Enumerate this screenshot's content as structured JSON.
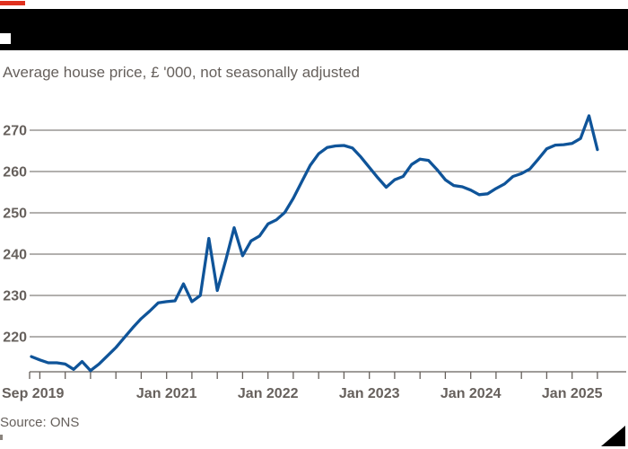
{
  "subtitle": "Average house price, £ '000, not seasonally adjusted",
  "source": "Source: ONS",
  "colors": {
    "background": "#ffffff",
    "line": "#0f5499",
    "text": "#66605c",
    "grid": "#66605c",
    "band": "#000000",
    "accent_red": "#e0301e",
    "notch_white": "#ffffff",
    "triangle": "#000000"
  },
  "header": {
    "redacted_title_band": true,
    "red_accent_dash": true
  },
  "chart_data": {
    "type": "line",
    "title": "",
    "subtitle": "Average house price, £ '000, not seasonally adjusted",
    "source": "Source: ONS",
    "x_start": "Sep 2019",
    "x_end": "Apr 2025",
    "frequency": "monthly",
    "grid": "horizontal-only",
    "legend": "none",
    "ylim": [
      211.5,
      275
    ],
    "y_ticks": [
      220,
      230,
      240,
      250,
      260,
      270
    ],
    "x_ticks": [
      {
        "label": "Sep 2019",
        "month_index": 0,
        "align": "start"
      },
      {
        "label": "Jan 2021",
        "month_index": 16,
        "align": "middle"
      },
      {
        "label": "Jan 2022",
        "month_index": 28,
        "align": "middle"
      },
      {
        "label": "Jan 2023",
        "month_index": 40,
        "align": "middle"
      },
      {
        "label": "Jan 2024",
        "month_index": 52,
        "align": "middle"
      },
      {
        "label": "Jan 2025",
        "month_index": 64,
        "align": "middle"
      }
    ],
    "series": [
      {
        "name": "Average house price (£ '000)",
        "values": [
          215.2,
          214.4,
          213.7,
          213.7,
          213.4,
          212.1,
          214.0,
          211.8,
          213.4,
          215.4,
          217.4,
          219.8,
          222.2,
          224.4,
          226.2,
          228.2,
          228.5,
          228.7,
          232.8,
          228.5,
          230.0,
          243.8,
          231.2,
          238.5,
          246.4,
          239.6,
          243.2,
          244.4,
          247.3,
          248.3,
          250.1,
          253.5,
          257.5,
          261.5,
          264.3,
          265.8,
          266.2,
          266.3,
          265.7,
          263.5,
          261.0,
          258.5,
          256.2,
          258.0,
          258.8,
          261.7,
          263.0,
          262.7,
          260.5,
          258.0,
          256.6,
          256.3,
          255.5,
          254.4,
          254.6,
          255.9,
          257.0,
          258.8,
          259.5,
          260.6,
          263.0,
          265.5,
          266.4,
          266.5,
          266.8,
          268.0,
          273.5,
          265.3
        ]
      }
    ]
  }
}
